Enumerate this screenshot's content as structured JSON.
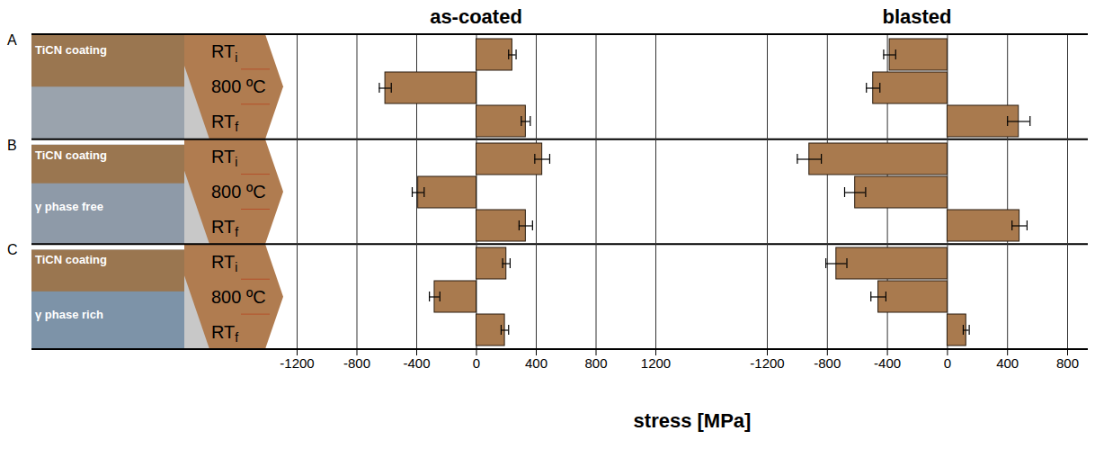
{
  "chart_data": {
    "type": "bar",
    "orientation": "horizontal",
    "xlabel": "stress [MPa]",
    "categories": [
      "RTi",
      "800 ºC",
      "RTf"
    ],
    "color": "#a97a4e",
    "specimens": [
      {
        "label": "A",
        "layers": [
          "TiCN coating"
        ]
      },
      {
        "label": "B",
        "layers": [
          "TiCN coating",
          "γ phase free"
        ]
      },
      {
        "label": "C",
        "layers": [
          "TiCN coating",
          "γ phase rich"
        ]
      }
    ],
    "panels": [
      {
        "title": "as-coated",
        "xlim": [
          -1200,
          1200
        ],
        "xticks": [
          -1200,
          -800,
          -400,
          0,
          400,
          800,
          1200
        ],
        "values": [
          [
            240,
            -610,
            330
          ],
          [
            440,
            -390,
            330
          ],
          [
            200,
            -280,
            190
          ]
        ],
        "errors": [
          [
            25,
            40,
            30
          ],
          [
            50,
            40,
            45
          ],
          [
            25,
            35,
            25
          ]
        ]
      },
      {
        "title": "blasted",
        "xlim": [
          -1200,
          800
        ],
        "xticks": [
          -1200,
          -800,
          -400,
          0,
          400,
          800
        ],
        "values": [
          [
            -385,
            -495,
            475
          ],
          [
            -920,
            -615,
            480
          ],
          [
            -740,
            -460,
            125
          ]
        ],
        "errors": [
          [
            40,
            45,
            75
          ],
          [
            80,
            70,
            50
          ],
          [
            70,
            50,
            20
          ]
        ]
      }
    ]
  }
}
